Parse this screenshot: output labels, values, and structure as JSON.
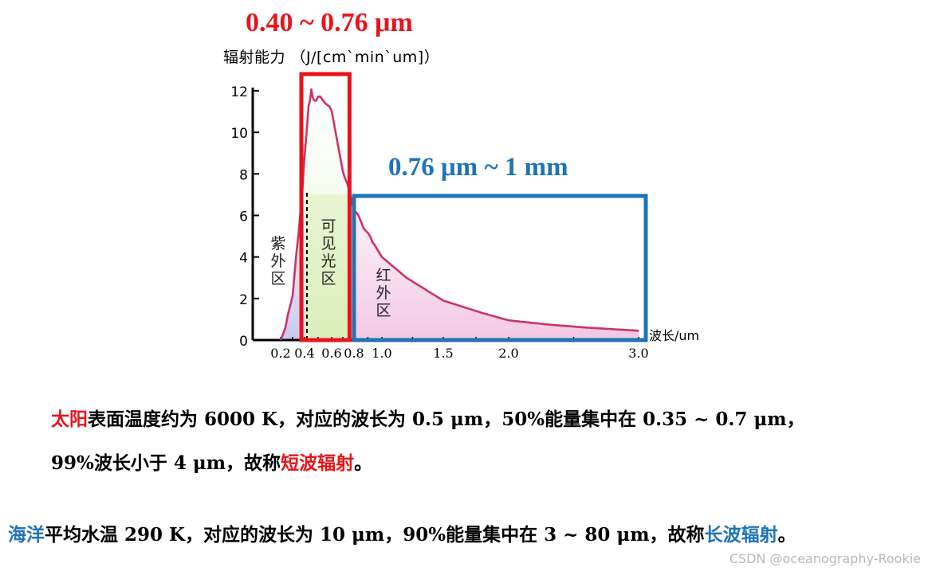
{
  "chart_data": {
    "type": "line",
    "title_visible": "0.40 ~ 0.76 μm",
    "title_infrared": "0.76 μm ~ 1 mm",
    "ylabel": "辐射能力 （J/[cm`min`um]）",
    "xlabel": "波长/um",
    "x_ticks": [
      "0.2",
      "0.4",
      "0.6",
      "0.8",
      "1.0",
      "1.5",
      "2.0",
      "3.0"
    ],
    "y_ticks": [
      "0",
      "2",
      "4",
      "6",
      "8",
      "10",
      "12"
    ],
    "ylim": [
      0,
      12
    ],
    "regions": [
      {
        "label": "紫外区",
        "x_range": [
          0.2,
          0.4
        ],
        "color": "#c9c9ee"
      },
      {
        "label": "可见光区",
        "x_range": [
          0.4,
          0.76
        ],
        "color": "#d9efb8"
      },
      {
        "label": "红外区",
        "x_range": [
          0.76,
          3.0
        ],
        "color": "#f2c8e4"
      }
    ],
    "series": [
      {
        "x": [
          0.2,
          0.24,
          0.3,
          0.35,
          0.38,
          0.4,
          0.43,
          0.45,
          0.47,
          0.5,
          0.55,
          0.6,
          0.65,
          0.7,
          0.76,
          0.8,
          0.9,
          1.0,
          1.2,
          1.5,
          1.8,
          2.0,
          2.3,
          2.6,
          3.0
        ],
        "y": [
          0.0,
          0.6,
          2.2,
          5.2,
          7.0,
          8.9,
          11.2,
          12.0,
          11.5,
          11.7,
          11.5,
          11.0,
          9.6,
          8.2,
          7.1,
          6.3,
          5.1,
          4.0,
          3.0,
          1.9,
          1.3,
          0.95,
          0.75,
          0.6,
          0.45
        ]
      }
    ],
    "colors": {
      "curve": "#cc3366",
      "visible_box": "#e8141b",
      "infrared_box": "#1f73b7"
    }
  },
  "paragraphs": {
    "p1": {
      "sun": "太阳",
      "body": "表面温度约为 6000 K，对应的波长为 0.5 μm，50%能量集中在 0.35 ~ 0.7 μm，"
    },
    "p2": {
      "body": "99%波长小于 4 μm，故称",
      "short": "短波辐射",
      "end": "。"
    },
    "p3": {
      "ocean": "海洋",
      "body": "平均水温 290 K，对应的波长为 10 μm，90%能量集中在 3 ~ 80 μm，故称",
      "long": "长波辐射",
      "end": "。"
    }
  },
  "watermark": "CSDN @oceanography-Rookie"
}
